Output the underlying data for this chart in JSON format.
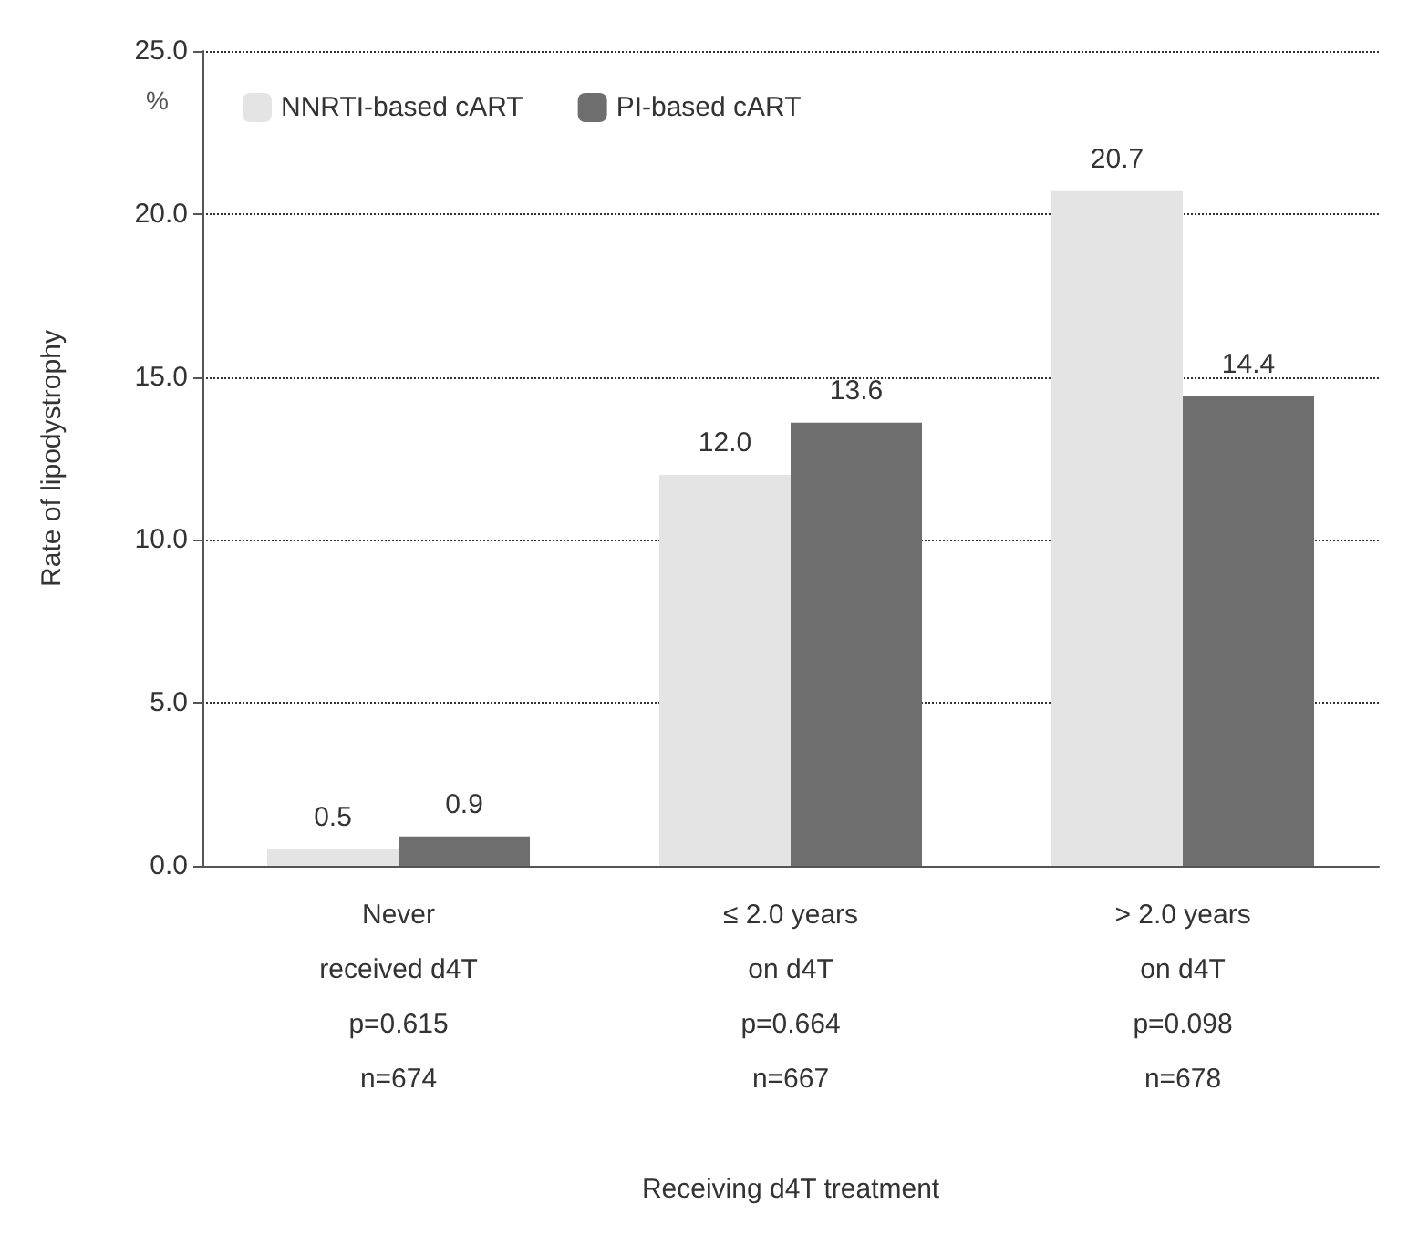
{
  "chart_data": {
    "type": "bar",
    "xlabel": "Receiving d4T treatment",
    "ylabel": "Rate of lipodystrophy",
    "annotations": [
      "%"
    ],
    "categories": [
      "Never\nreceived d4T\np=0.615\nn=674",
      "≤ 2.0 years\non d4T\np=0.664\nn=667",
      "> 2.0 years\non d4T\np=0.098\nn=678"
    ],
    "series": [
      {
        "name": "NNRTI-based cART",
        "color": "#e4e4e4",
        "values": [
          0.5,
          12.0,
          20.7
        ],
        "value_labels": [
          "0.5",
          "12.0",
          "20.7"
        ]
      },
      {
        "name": "PI-based cART",
        "color": "#6e6e6e",
        "values": [
          0.9,
          13.6,
          14.4
        ],
        "value_labels": [
          "0.9",
          "13.6",
          "14.4"
        ]
      }
    ],
    "ylim": [
      0,
      25
    ],
    "yticks": [
      {
        "value": 0,
        "label": "0.0"
      },
      {
        "value": 5,
        "label": "5.0"
      },
      {
        "value": 10,
        "label": "10.0"
      },
      {
        "value": 15,
        "label": "15.0"
      },
      {
        "value": 20,
        "label": "20.0"
      },
      {
        "value": 25,
        "label": "25.0"
      }
    ],
    "grid": "y",
    "legend": "top left",
    "line_style": "dotted"
  }
}
